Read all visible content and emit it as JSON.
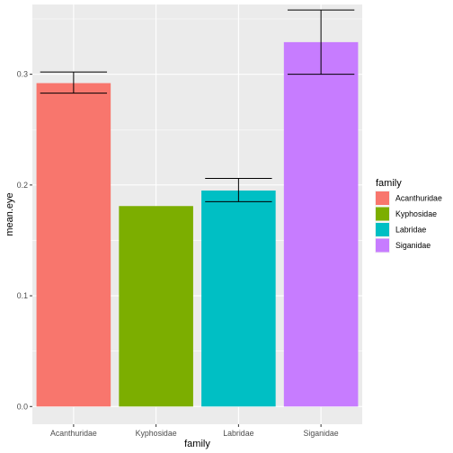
{
  "chart_data": {
    "type": "bar",
    "categories": [
      "Acanthuridae",
      "Kyphosidae",
      "Labridae",
      "Siganidae"
    ],
    "values": [
      0.292,
      0.181,
      0.195,
      0.329
    ],
    "error_bars": [
      {
        "low": 0.283,
        "high": 0.302
      },
      null,
      {
        "low": 0.185,
        "high": 0.206
      },
      {
        "low": 0.3,
        "high": 0.358
      }
    ],
    "colors": [
      "#F8766D",
      "#7CAE00",
      "#00BFC4",
      "#C77CFF"
    ],
    "xlabel": "family",
    "ylabel": "mean.eye",
    "ylim": [
      -0.016,
      0.363
    ],
    "yticks": [
      0.0,
      0.1,
      0.2,
      0.3
    ],
    "ytick_labels": [
      "0.0",
      "0.1",
      "0.2",
      "0.3"
    ],
    "grid": true,
    "legend": {
      "title": "family",
      "position": "right",
      "entries": [
        "Acanthuridae",
        "Kyphosidae",
        "Labridae",
        "Siganidae"
      ]
    }
  }
}
